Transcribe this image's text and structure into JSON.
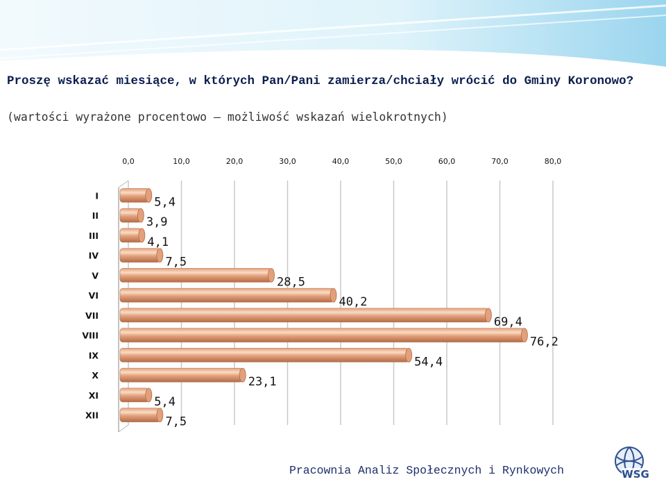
{
  "slide": {
    "title": "Proszę wskazać miesiące, w których Pan/Pani zamierza/chciały wrócić do Gminy Koronowo?",
    "subtitle": "(wartości wyrażone procentowo – możliwość wskazań wielokrotnych)",
    "footer": "Pracownia Analiz Społecznych i Rynkowych",
    "logo_text": "WSG"
  },
  "colors": {
    "bar_light": "#f9dcc4",
    "bar_mid": "#e3a07c",
    "bar_dark": "#b36d47",
    "grid": "#c8c8c8",
    "axis_text": "#111111",
    "title": "#0b1f4f",
    "footer": "#1e2f6b",
    "band_light": "#dff3fb",
    "band_dark": "#6ec3e6"
  },
  "chart_data": {
    "type": "bar",
    "orientation": "horizontal",
    "categories": [
      "I",
      "II",
      "III",
      "IV",
      "V",
      "VI",
      "VII",
      "VIII",
      "IX",
      "X",
      "XI",
      "XII"
    ],
    "values": [
      5.4,
      3.9,
      4.1,
      7.5,
      28.5,
      40.2,
      69.4,
      76.2,
      54.4,
      23.1,
      5.4,
      7.5
    ],
    "value_labels": [
      "5,4",
      "3,9",
      "4,1",
      "7,5",
      "28,5",
      "40,2",
      "69,4",
      "76,2",
      "54,4",
      "23,1",
      "5,4",
      "7,5"
    ],
    "x_ticks": [
      "0,0",
      "10,0",
      "20,0",
      "30,0",
      "40,0",
      "50,0",
      "60,0",
      "70,0",
      "80,0"
    ],
    "xlim": [
      0,
      80
    ],
    "xaxis_position": "top",
    "grid": true,
    "legend": "none"
  }
}
